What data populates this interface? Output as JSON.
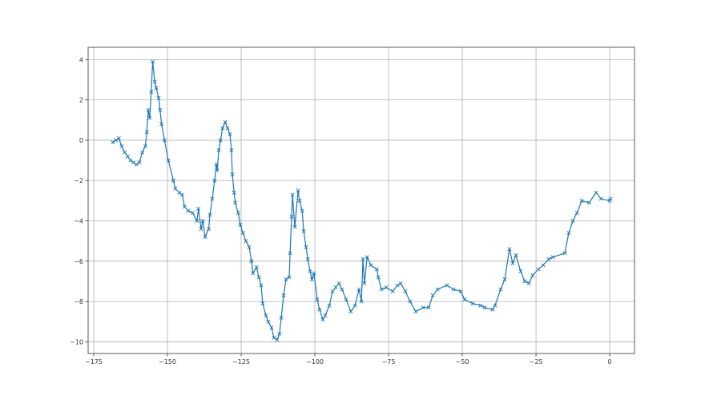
{
  "chart_data": {
    "type": "line",
    "title": "",
    "xlabel": "",
    "ylabel": "",
    "xlim": [
      -176.9,
      8.4
    ],
    "ylim": [
      -10.58,
      4.61
    ],
    "xticks": [
      -175,
      -150,
      -125,
      -100,
      -75,
      -50,
      -25,
      0
    ],
    "xtick_labels": [
      "−175",
      "−150",
      "−125",
      "−100",
      "−75",
      "−50",
      "−25",
      "0"
    ],
    "yticks": [
      4,
      2,
      0,
      -2,
      -4,
      -6,
      -8,
      -10
    ],
    "ytick_labels": [
      "4",
      "2",
      "0",
      "−2",
      "−4",
      "−6",
      "−8",
      "−10"
    ],
    "grid": true,
    "marker": "x",
    "line_color": "#1f77b4",
    "series": [
      {
        "points": [
          [
            -168.5,
            -0.1
          ],
          [
            -167.5,
            0
          ],
          [
            -166.5,
            0.1
          ],
          [
            -165.5,
            -0.3
          ],
          [
            -164.5,
            -0.6
          ],
          [
            -163.5,
            -0.8
          ],
          [
            -162.5,
            -1.0
          ],
          [
            -161.5,
            -1.1
          ],
          [
            -160.5,
            -1.2
          ],
          [
            -159.5,
            -1.1
          ],
          [
            -158.5,
            -0.6
          ],
          [
            -157.5,
            -0.3
          ],
          [
            -157,
            0.4
          ],
          [
            -156.5,
            1.5
          ],
          [
            -156,
            1.1
          ],
          [
            -155.5,
            2.4
          ],
          [
            -155,
            3.9
          ],
          [
            -154.3,
            2.9
          ],
          [
            -153.8,
            2.6
          ],
          [
            -153,
            2.1
          ],
          [
            -152.5,
            1.5
          ],
          [
            -152,
            0.8
          ],
          [
            -151,
            0
          ],
          [
            -149.7,
            -1
          ],
          [
            -148,
            -2
          ],
          [
            -147.3,
            -2.4
          ],
          [
            -146,
            -2.6
          ],
          [
            -145,
            -2.7
          ],
          [
            -144.2,
            -3.3
          ],
          [
            -143,
            -3.5
          ],
          [
            -141.5,
            -3.6
          ],
          [
            -140,
            -4.0
          ],
          [
            -139.5,
            -3.4
          ],
          [
            -138.6,
            -4.4
          ],
          [
            -138,
            -4.0
          ],
          [
            -137.2,
            -4.8
          ],
          [
            -136,
            -4.4
          ],
          [
            -135.6,
            -3.7
          ],
          [
            -134.8,
            -2.9
          ],
          [
            -134,
            -2.0
          ],
          [
            -133.4,
            -1.2
          ],
          [
            -133.1,
            -1.5
          ],
          [
            -132.6,
            -0.5
          ],
          [
            -132,
            0
          ],
          [
            -131.3,
            0.6
          ],
          [
            -130.4,
            0.9
          ],
          [
            -129.6,
            0.6
          ],
          [
            -128.8,
            0.3
          ],
          [
            -128.3,
            -0.5
          ],
          [
            -128,
            -1.7
          ],
          [
            -127.4,
            -2.6
          ],
          [
            -127,
            -3.1
          ],
          [
            -126,
            -3.6
          ],
          [
            -125.3,
            -4.2
          ],
          [
            -124.4,
            -4.6
          ],
          [
            -123.4,
            -5.0
          ],
          [
            -122.3,
            -5.3
          ],
          [
            -121.5,
            -6.0
          ],
          [
            -121,
            -6.6
          ],
          [
            -119.8,
            -6.3
          ],
          [
            -119,
            -6.8
          ],
          [
            -118.2,
            -7.2
          ],
          [
            -117.7,
            -8.1
          ],
          [
            -116.6,
            -8.7
          ],
          [
            -115.8,
            -9.0
          ],
          [
            -114.7,
            -9.3
          ],
          [
            -113.9,
            -9.8
          ],
          [
            -112.8,
            -9.9
          ],
          [
            -112,
            -9.6
          ],
          [
            -111.4,
            -8.8
          ],
          [
            -110.6,
            -7.7
          ],
          [
            -109.8,
            -6.9
          ],
          [
            -108.7,
            -6.8
          ],
          [
            -108.4,
            -5.6
          ],
          [
            -107.9,
            -3.8
          ],
          [
            -107.6,
            -2.7
          ],
          [
            -106.8,
            -4.3
          ],
          [
            -105.7,
            -2.5
          ],
          [
            -105.2,
            -3.0
          ],
          [
            -104.3,
            -3.5
          ],
          [
            -103.8,
            -4.5
          ],
          [
            -103,
            -5.3
          ],
          [
            -102.4,
            -5.9
          ],
          [
            -101.6,
            -6.5
          ],
          [
            -101,
            -6.9
          ],
          [
            -100.3,
            -6.6
          ],
          [
            -99.2,
            -7.9
          ],
          [
            -98.4,
            -8.4
          ],
          [
            -97.3,
            -8.9
          ],
          [
            -96.5,
            -8.7
          ],
          [
            -95.1,
            -8.2
          ],
          [
            -94,
            -7.5
          ],
          [
            -92.9,
            -7.3
          ],
          [
            -91.8,
            -7.1
          ],
          [
            -90.8,
            -7.4
          ],
          [
            -89.4,
            -7.9
          ],
          [
            -87.8,
            -8.5
          ],
          [
            -86.4,
            -8.2
          ],
          [
            -85,
            -7.4
          ],
          [
            -84.2,
            -8.0
          ],
          [
            -83.7,
            -5.9
          ],
          [
            -83.2,
            -7.1
          ],
          [
            -82.3,
            -5.8
          ],
          [
            -81,
            -6.2
          ],
          [
            -79,
            -6.4
          ],
          [
            -78.5,
            -6.8
          ],
          [
            -77.4,
            -7.4
          ],
          [
            -75.8,
            -7.3
          ],
          [
            -73.6,
            -7.5
          ],
          [
            -72,
            -7.2
          ],
          [
            -70.9,
            -7.1
          ],
          [
            -69.3,
            -7.5
          ],
          [
            -67.7,
            -8.0
          ],
          [
            -65.8,
            -8.5
          ],
          [
            -63.3,
            -8.3
          ],
          [
            -61.4,
            -8.3
          ],
          [
            -60,
            -7.7
          ],
          [
            -58.4,
            -7.4
          ],
          [
            -55.2,
            -7.2
          ],
          [
            -53,
            -7.4
          ],
          [
            -50.5,
            -7.5
          ],
          [
            -49.2,
            -7.9
          ],
          [
            -46.5,
            -8.1
          ],
          [
            -43.8,
            -8.2
          ],
          [
            -42.4,
            -8.3
          ],
          [
            -39.7,
            -8.4
          ],
          [
            -38.9,
            -8.2
          ],
          [
            -37,
            -7.4
          ],
          [
            -35.6,
            -6.9
          ],
          [
            -34,
            -5.4
          ],
          [
            -32.9,
            -6.1
          ],
          [
            -31.8,
            -5.7
          ],
          [
            -30.2,
            -6.5
          ],
          [
            -28.8,
            -7.0
          ],
          [
            -27.4,
            -7.1
          ],
          [
            -26.1,
            -6.7
          ],
          [
            -24.2,
            -6.4
          ],
          [
            -22.6,
            -6.2
          ],
          [
            -20.7,
            -5.9
          ],
          [
            -19.3,
            -5.8
          ],
          [
            -15.2,
            -5.6
          ],
          [
            -13.9,
            -4.6
          ],
          [
            -12.5,
            -4.0
          ],
          [
            -11.1,
            -3.6
          ],
          [
            -9.5,
            -3.0
          ],
          [
            -7,
            -3.1
          ],
          [
            -4.6,
            -2.6
          ],
          [
            -3,
            -2.9
          ],
          [
            0,
            -3.0
          ],
          [
            0.3,
            -2.9
          ]
        ]
      }
    ]
  }
}
